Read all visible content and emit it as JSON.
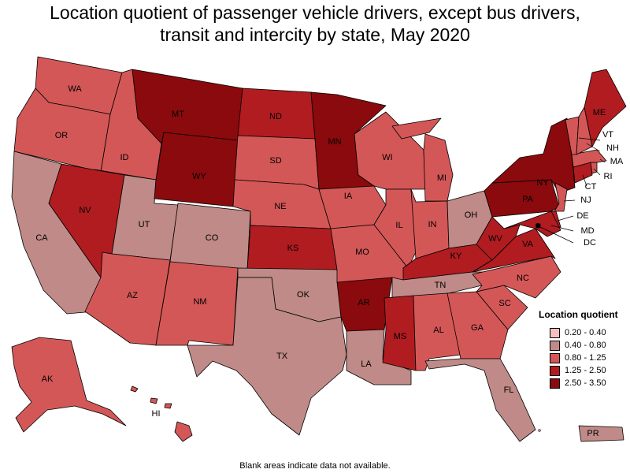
{
  "title_line1": "Location quotient of passenger vehicle drivers, except bus drivers,",
  "title_line2": "transit and intercity by state, May 2020",
  "legend": {
    "title": "Location quotient",
    "bins": [
      {
        "label": "0.20 - 0.40",
        "color": "#f5bfc0"
      },
      {
        "label": "0.40 - 0.80",
        "color": "#bf8a87"
      },
      {
        "label": "0.80 - 1.25",
        "color": "#d45757"
      },
      {
        "label": "1.25 - 2.50",
        "color": "#b01c20"
      },
      {
        "label": "2.50 - 3.50",
        "color": "#8a0a0d"
      }
    ]
  },
  "footnote": "Blank areas indicate data not available.",
  "states": {
    "WA": 2,
    "OR": 2,
    "CA": 1,
    "ID": 2,
    "NV": 3,
    "UT": 1,
    "AZ": 2,
    "MT": 4,
    "WY": 4,
    "CO": 1,
    "NM": 2,
    "ND": 3,
    "SD": 2,
    "NE": 2,
    "KS": 3,
    "OK": 1,
    "TX": 1,
    "MN": 4,
    "IA": 2,
    "MO": 2,
    "AR": 4,
    "LA": 1,
    "WI": 2,
    "IL": 2,
    "MI": 2,
    "IN": 2,
    "OH": 1,
    "KY": 3,
    "TN": 1,
    "MS": 3,
    "AL": 2,
    "GA": 2,
    "FL": 1,
    "SC": 2,
    "NC": 2,
    "VA": 3,
    "WV": 3,
    "PA": 4,
    "NY": 4,
    "ME": 3,
    "VT": 2,
    "NH": 2,
    "MA": 2,
    "RI": 2,
    "CT": 3,
    "NJ": 2,
    "DE": 3,
    "MD": 3,
    "DC": 4,
    "AK": 2,
    "HI": 2,
    "PR": 1
  }
}
